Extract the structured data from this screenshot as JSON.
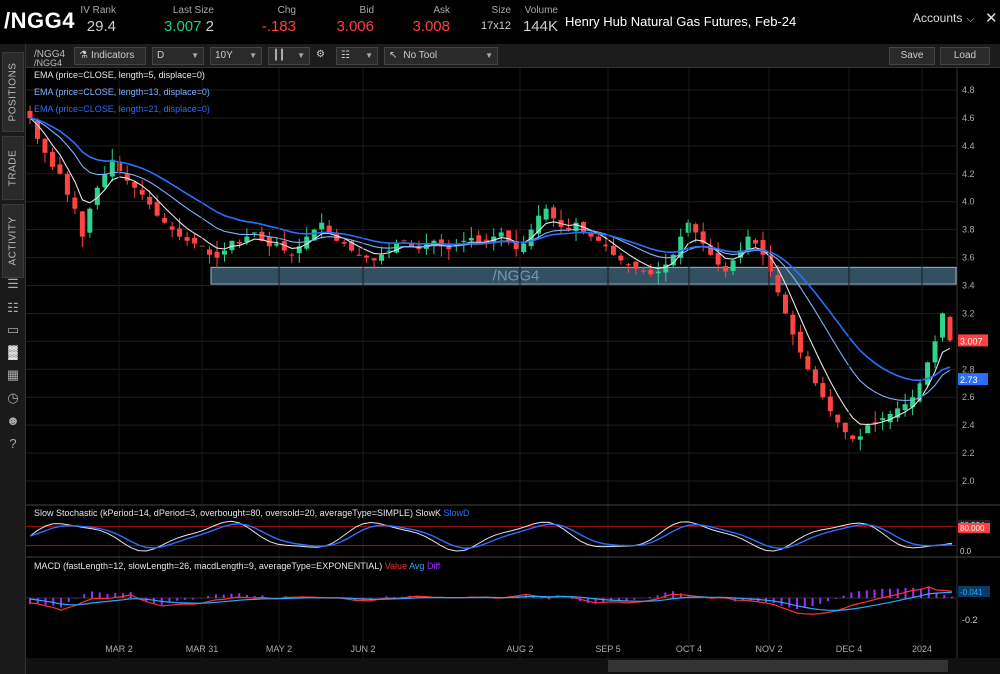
{
  "header": {
    "symbol": "/NGG4",
    "iv_rank": {
      "label": "IV Rank",
      "value": "29.4"
    },
    "last_size": {
      "label": "Last Size",
      "last": "3.007",
      "size": "2"
    },
    "chg": {
      "label": "Chg",
      "value": "-.183"
    },
    "bid": {
      "label": "Bid",
      "value": "3.006"
    },
    "ask": {
      "label": "Ask",
      "value": "3.008"
    },
    "size": {
      "label": "Size",
      "value": "17x12"
    },
    "volume": {
      "label": "Volume",
      "value": "144K"
    },
    "contract_name": "Henry Hub Natural Gas Futures, Feb-24",
    "accounts_label": "Accounts",
    "colors": {
      "up": "#1fd28a",
      "down": "#ff4040",
      "neutral": "#cfcfcf"
    }
  },
  "left_tabs": [
    "POSITIONS",
    "TRADE",
    "ACTIVITY"
  ],
  "left_icons": [
    "document-icon",
    "clipboard-icon",
    "tv-icon",
    "chart-icon",
    "grid-icon",
    "history-icon",
    "people-icon",
    "help-icon"
  ],
  "toolbar": {
    "symbol": "/NGG4",
    "indicators_label": "Indicators",
    "aggregation": "D",
    "timeframe": "10Y",
    "tool": "No Tool",
    "save_label": "Save",
    "load_label": "Load"
  },
  "chart_data": [
    {
      "type": "candlestick",
      "symbol": "/NGG4",
      "watermark": "/NGG4",
      "legend": [
        {
          "text": "EMA (price=CLOSE, length=5, displace=0)",
          "color": "#e6e6e6"
        },
        {
          "text": "EMA (price=CLOSE, length=13, displace=0)",
          "color": "#7fb2ff"
        },
        {
          "text": "EMA (price=CLOSE, length=21, displace=0)",
          "color": "#2a6fff"
        }
      ],
      "x_ticks": [
        "MAR 2",
        "MAR 31",
        "MAY 2",
        "JUN 2",
        "AUG 2",
        "SEP 5",
        "OCT 4",
        "NOV 2",
        "DEC 4",
        "2024"
      ],
      "y_ticks": [
        "4.8",
        "4.6",
        "4.4",
        "4.2",
        "4.0",
        "3.8",
        "3.6",
        "3.4",
        "3.2",
        "3.0",
        "2.8",
        "2.6",
        "2.4",
        "2.2",
        "2.0"
      ],
      "ylim": [
        1.85,
        4.9
      ],
      "support_zone": [
        3.41,
        3.53
      ],
      "price_labels": [
        {
          "text": "3.007",
          "color": "#ff4040"
        },
        {
          "text": "2.73",
          "color": "#2a6fff"
        }
      ],
      "closes": [
        4.6,
        4.45,
        4.35,
        4.25,
        4.2,
        4.05,
        3.95,
        3.75,
        3.95,
        4.1,
        4.2,
        4.3,
        4.22,
        4.15,
        4.1,
        4.05,
        3.98,
        3.9,
        3.85,
        3.8,
        3.75,
        3.72,
        3.7,
        3.68,
        3.62,
        3.6,
        3.65,
        3.72,
        3.7,
        3.75,
        3.78,
        3.72,
        3.68,
        3.7,
        3.65,
        3.62,
        3.68,
        3.75,
        3.8,
        3.85,
        3.78,
        3.72,
        3.7,
        3.65,
        3.62,
        3.6,
        3.58,
        3.62,
        3.65,
        3.7,
        3.72,
        3.68,
        3.66,
        3.7,
        3.72,
        3.68,
        3.66,
        3.7,
        3.72,
        3.74,
        3.7,
        3.72,
        3.75,
        3.78,
        3.72,
        3.66,
        3.7,
        3.8,
        3.9,
        3.95,
        3.88,
        3.82,
        3.8,
        3.85,
        3.78,
        3.75,
        3.72,
        3.68,
        3.62,
        3.58,
        3.55,
        3.52,
        3.5,
        3.48,
        3.5,
        3.55,
        3.62,
        3.75,
        3.85,
        3.78,
        3.7,
        3.62,
        3.55,
        3.5,
        3.58,
        3.65,
        3.75,
        3.7,
        3.62,
        3.5,
        3.35,
        3.2,
        3.05,
        2.92,
        2.8,
        2.7,
        2.6,
        2.5,
        2.42,
        2.35,
        2.3,
        2.32,
        2.4,
        2.42,
        2.45,
        2.48,
        2.52,
        2.55,
        2.6,
        2.7,
        2.85,
        3.0,
        3.2,
        3.007
      ]
    },
    {
      "type": "line",
      "title": "Slow Stochastic (kPeriod=14, dPeriod=3, overbought=80, oversold=20, averageType=SIMPLE)",
      "series": [
        {
          "name": "SlowK",
          "color": "#e6e6e6"
        },
        {
          "name": "SlowD",
          "color": "#2a6fff"
        }
      ],
      "levels": [
        80,
        20
      ],
      "y_labels": [
        {
          "text": "80.534",
          "color": "#e6e6e6"
        },
        {
          "text": "80.000",
          "color": "#ff4040"
        },
        {
          "text": "0.0",
          "color": "#cccccc"
        }
      ]
    },
    {
      "type": "line",
      "title": "MACD (fastLength=12, slowLength=26, macdLength=9, averageType=EXPONENTIAL)",
      "series": [
        {
          "name": "Value",
          "color": "#ff3030"
        },
        {
          "name": "Avg",
          "color": "#2aa8ff"
        },
        {
          "name": "Diff",
          "color": "#9b30ff"
        }
      ],
      "y_labels": [
        {
          "text": "-0.2",
          "color": "#cccccc"
        },
        {
          "text": "-0.041",
          "color": "#2aa8ff"
        }
      ]
    }
  ]
}
